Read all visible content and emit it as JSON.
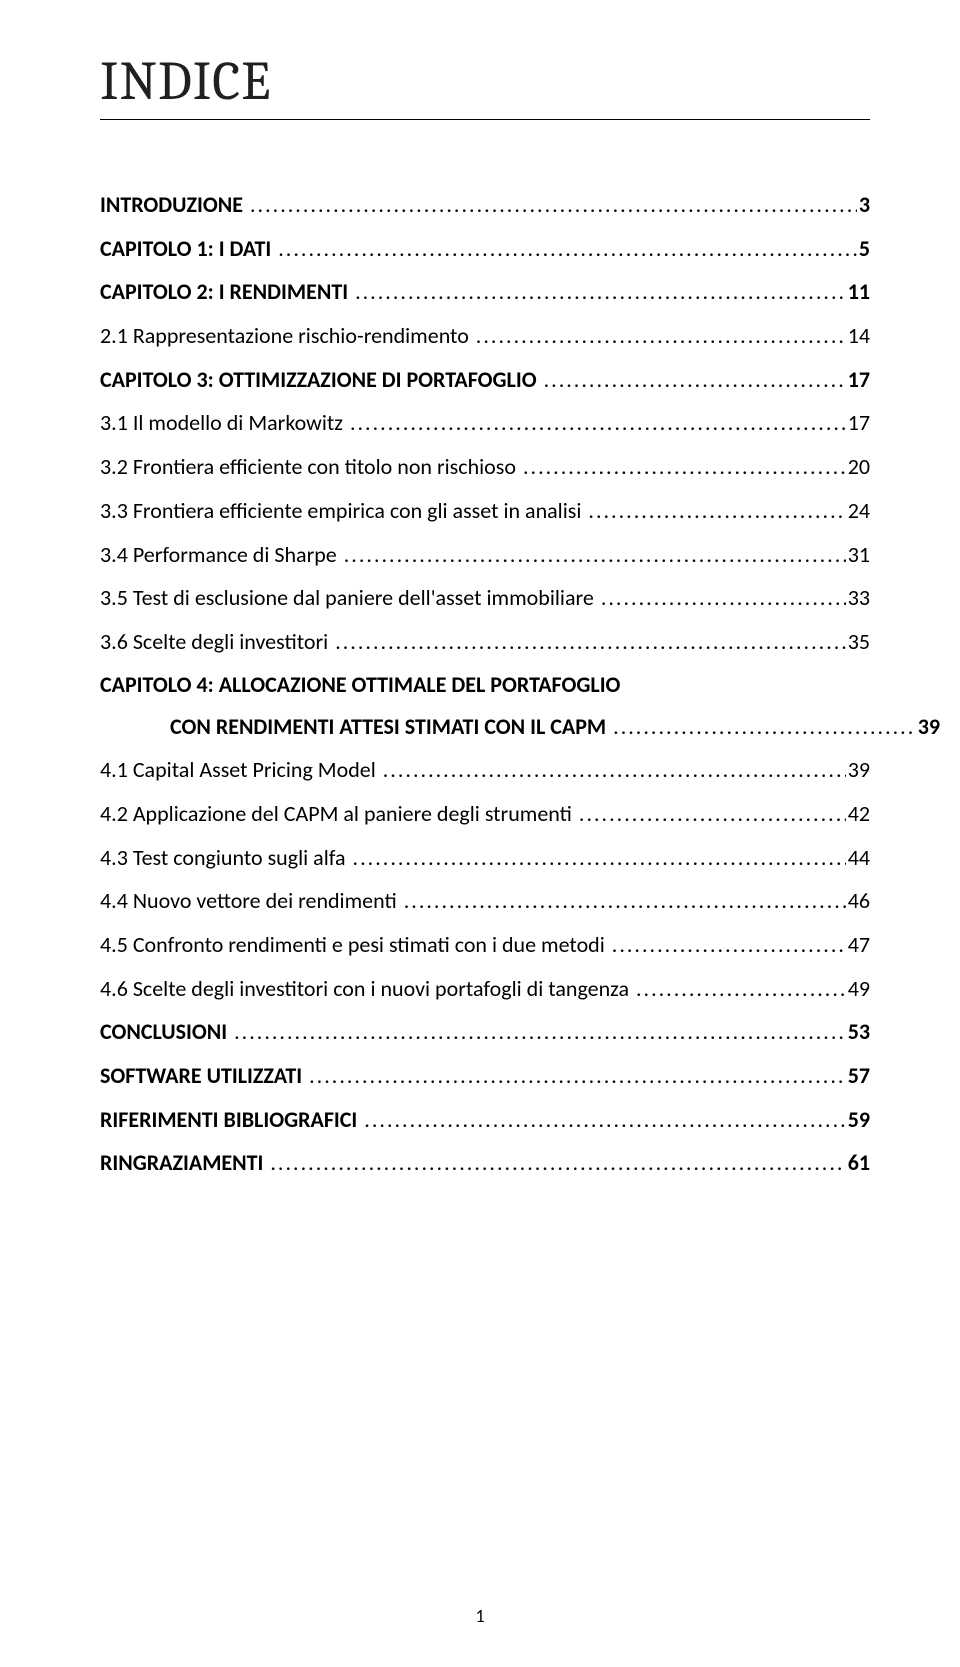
{
  "page": {
    "title": "INDICE",
    "footer_page_number": "1"
  },
  "toc": {
    "entries": [
      {
        "label": "INTRODUZIONE ",
        "page": "3",
        "bold": true,
        "indent": 0
      },
      {
        "label": "CAPITOLO 1: I DATI ",
        "page": "5",
        "bold": true,
        "indent": 0
      },
      {
        "label": "CAPITOLO 2: I RENDIMENTI ",
        "page": "11",
        "bold": true,
        "indent": 0
      },
      {
        "label": "2.1 Rappresentazione rischio-rendimento ",
        "page": "14",
        "bold": false,
        "indent": 0
      },
      {
        "label": "CAPITOLO 3: OTTIMIZZAZIONE DI PORTAFOGLIO ",
        "page": "17",
        "bold": true,
        "indent": 0
      },
      {
        "label": "3.1 Il modello di Markowitz ",
        "page": "17",
        "bold": false,
        "indent": 0
      },
      {
        "label": "3.2 Frontiera efficiente con titolo non rischioso ",
        "page": "20",
        "bold": false,
        "indent": 0
      },
      {
        "label": "3.3 Frontiera efficiente empirica con gli asset in analisi ",
        "page": "24",
        "bold": false,
        "indent": 0
      },
      {
        "label": "3.4 Performance di Sharpe ",
        "page": "31",
        "bold": false,
        "indent": 0
      },
      {
        "label": "3.5 Test di esclusione dal paniere dell'asset immobiliare ",
        "page": "33",
        "bold": false,
        "indent": 0
      },
      {
        "label": "3.6 Scelte degli investitori ",
        "page": "35",
        "bold": false,
        "indent": 0
      }
    ],
    "cap4_line1": "CAPITOLO 4: ALLOCAZIONE OTTIMALE DEL PORTAFOGLIO",
    "cap4_line2_label": "CON RENDIMENTI ATTESI STIMATI CON IL CAPM ",
    "cap4_line2_page": "39",
    "entries_after": [
      {
        "label": "4.1 Capital Asset Pricing Model ",
        "page": "39",
        "bold": false,
        "indent": 0
      },
      {
        "label": "4.2 Applicazione del CAPM al paniere degli strumenti ",
        "page": "42",
        "bold": false,
        "indent": 0
      },
      {
        "label": "4.3 Test congiunto sugli alfa ",
        "page": "44",
        "bold": false,
        "indent": 0
      },
      {
        "label": "4.4 Nuovo vettore dei rendimenti ",
        "page": "46",
        "bold": false,
        "indent": 0
      },
      {
        "label": "4.5 Confronto rendimenti e pesi stimati con i due metodi ",
        "page": "47",
        "bold": false,
        "indent": 0
      },
      {
        "label": "4.6 Scelte degli investitori con i nuovi portafogli di tangenza ",
        "page": "49",
        "bold": false,
        "indent": 0
      },
      {
        "label": "CONCLUSIONI ",
        "page": "53",
        "bold": true,
        "indent": 0
      },
      {
        "label": "SOFTWARE UTILIZZATI ",
        "page": "57",
        "bold": true,
        "indent": 0
      },
      {
        "label": "RIFERIMENTI BIBLIOGRAFICI ",
        "page": "59",
        "bold": true,
        "indent": 0
      },
      {
        "label": "RINGRAZIAMENTI ",
        "page": "61",
        "bold": true,
        "indent": 0
      }
    ]
  }
}
